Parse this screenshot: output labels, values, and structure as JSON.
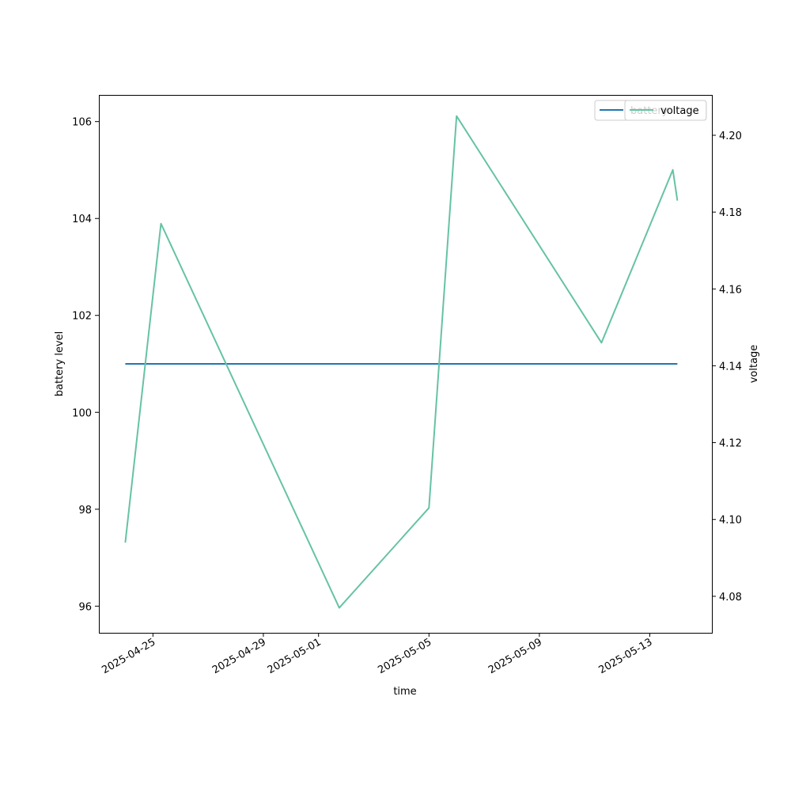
{
  "chart_data": {
    "type": "line",
    "xlabel": "time",
    "ylabel_left": "battery level",
    "ylabel_right": "voltage",
    "x_ticks": [
      "2025-04-25",
      "2025-04-29",
      "2025-05-01",
      "2025-05-05",
      "2025-05-09",
      "2025-05-13"
    ],
    "y_left_ticks": [
      96,
      98,
      100,
      102,
      104,
      106
    ],
    "y_right_ticks": [
      4.08,
      4.1,
      4.12,
      4.14,
      4.16,
      4.18,
      4.2
    ],
    "y_left_range": [
      95.45,
      106.55
    ],
    "y_right_range": [
      4.0705,
      4.2105
    ],
    "x_range": [
      "2025-04-23T01:00",
      "2025-05-15T06:00"
    ],
    "series": [
      {
        "name": "battery",
        "axis": "left",
        "color": "#1f77b4",
        "points": [
          {
            "x": "2025-04-24",
            "y": 101
          },
          {
            "x": "2025-05-14",
            "y": 101
          }
        ]
      },
      {
        "name": "voltage",
        "axis": "right",
        "color": "#66c2a5",
        "points": [
          {
            "x": "2025-04-24",
            "y": 4.094
          },
          {
            "x": "2025-04-25T07:00",
            "y": 4.177
          },
          {
            "x": "2025-05-01T18:00",
            "y": 4.077
          },
          {
            "x": "2025-05-05",
            "y": 4.103
          },
          {
            "x": "2025-05-06",
            "y": 4.205
          },
          {
            "x": "2025-05-11T06:00",
            "y": 4.146
          },
          {
            "x": "2025-05-13T20:00",
            "y": 4.191
          },
          {
            "x": "2025-05-14",
            "y": 4.183
          }
        ]
      }
    ],
    "legend": {
      "placement": "upper right",
      "entries": [
        "battery",
        "voltage"
      ]
    },
    "grid": false
  }
}
